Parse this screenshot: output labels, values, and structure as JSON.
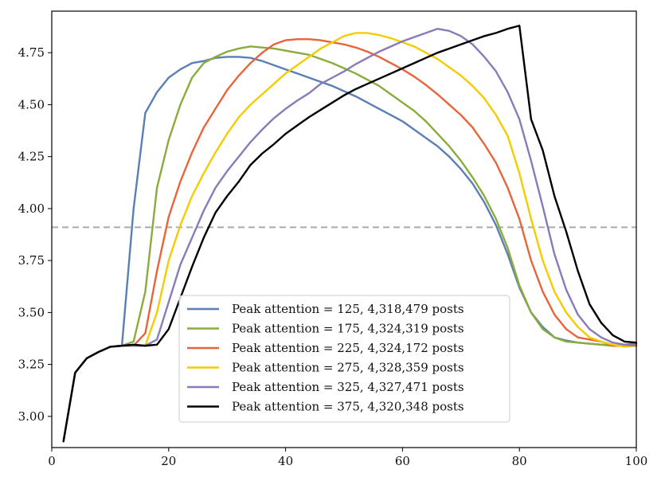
{
  "chart_data": {
    "type": "line",
    "title": "",
    "xlabel": "",
    "ylabel": "",
    "xlim": [
      0,
      100
    ],
    "ylim": [
      2.85,
      4.95
    ],
    "xticks": [
      0,
      20,
      40,
      60,
      80,
      100
    ],
    "yticks": [
      3.0,
      3.25,
      3.5,
      3.75,
      4.0,
      4.25,
      4.5,
      4.75
    ],
    "x": [
      2,
      4,
      6,
      8,
      10,
      12,
      14,
      16,
      18,
      20,
      22,
      24,
      26,
      28,
      30,
      32,
      34,
      36,
      38,
      40,
      42,
      44,
      46,
      48,
      50,
      52,
      54,
      56,
      58,
      60,
      62,
      64,
      66,
      68,
      70,
      72,
      74,
      76,
      78,
      80,
      82,
      84,
      86,
      88,
      90,
      92,
      94,
      96,
      98,
      100
    ],
    "grid": false,
    "legend_position": "bottom-center",
    "reference_line": {
      "y": 3.91,
      "style": "dashed",
      "color": "#aaaaaa"
    },
    "series": [
      {
        "name": "Peak attention = 125, 4,318,479 posts",
        "color": "#5b7fb5",
        "values": [
          2.88,
          3.21,
          3.28,
          3.31,
          3.335,
          3.34,
          4.0,
          4.46,
          4.56,
          4.63,
          4.67,
          4.7,
          4.71,
          4.725,
          4.73,
          4.73,
          4.725,
          4.71,
          4.69,
          4.67,
          4.65,
          4.63,
          4.61,
          4.59,
          4.565,
          4.54,
          4.51,
          4.48,
          4.45,
          4.42,
          4.38,
          4.34,
          4.3,
          4.25,
          4.19,
          4.12,
          4.03,
          3.92,
          3.78,
          3.62,
          3.5,
          3.43,
          3.38,
          3.365,
          3.355,
          3.35,
          3.345,
          3.34,
          3.345,
          3.35
        ]
      },
      {
        "name": "Peak attention = 175, 4,324,319 posts",
        "color": "#8aac3c",
        "values": [
          2.88,
          3.21,
          3.28,
          3.31,
          3.335,
          3.34,
          3.36,
          3.6,
          4.1,
          4.33,
          4.5,
          4.63,
          4.7,
          4.73,
          4.755,
          4.77,
          4.78,
          4.775,
          4.77,
          4.76,
          4.75,
          4.74,
          4.72,
          4.7,
          4.675,
          4.65,
          4.62,
          4.59,
          4.55,
          4.51,
          4.47,
          4.42,
          4.36,
          4.3,
          4.23,
          4.15,
          4.06,
          3.95,
          3.81,
          3.63,
          3.5,
          3.42,
          3.38,
          3.36,
          3.355,
          3.35,
          3.345,
          3.34,
          3.34,
          3.34
        ]
      },
      {
        "name": "Peak attention = 225, 4,324,172 posts",
        "color": "#e8643a",
        "values": [
          2.88,
          3.21,
          3.28,
          3.31,
          3.335,
          3.34,
          3.34,
          3.4,
          3.7,
          3.96,
          4.13,
          4.27,
          4.39,
          4.48,
          4.57,
          4.64,
          4.7,
          4.75,
          4.79,
          4.81,
          4.815,
          4.815,
          4.81,
          4.8,
          4.79,
          4.775,
          4.755,
          4.73,
          4.7,
          4.67,
          4.635,
          4.595,
          4.55,
          4.5,
          4.45,
          4.39,
          4.31,
          4.22,
          4.1,
          3.95,
          3.75,
          3.6,
          3.49,
          3.42,
          3.38,
          3.37,
          3.36,
          3.34,
          3.34,
          3.345
        ]
      },
      {
        "name": "Peak attention = 275, 4,328,359 posts",
        "color": "#f5cc00",
        "values": [
          2.88,
          3.21,
          3.28,
          3.31,
          3.335,
          3.34,
          3.34,
          3.34,
          3.5,
          3.75,
          3.92,
          4.06,
          4.17,
          4.27,
          4.36,
          4.44,
          4.5,
          4.55,
          4.6,
          4.65,
          4.69,
          4.73,
          4.77,
          4.8,
          4.83,
          4.845,
          4.845,
          4.835,
          4.82,
          4.8,
          4.78,
          4.75,
          4.72,
          4.68,
          4.64,
          4.59,
          4.53,
          4.45,
          4.35,
          4.17,
          3.95,
          3.75,
          3.6,
          3.5,
          3.43,
          3.38,
          3.36,
          3.345,
          3.335,
          3.34
        ]
      },
      {
        "name": "Peak attention = 325, 4,327,471 posts",
        "color": "#8a7ab9",
        "values": [
          2.88,
          3.21,
          3.28,
          3.31,
          3.335,
          3.34,
          3.34,
          3.34,
          3.37,
          3.55,
          3.73,
          3.86,
          3.99,
          4.1,
          4.18,
          4.25,
          4.32,
          4.38,
          4.435,
          4.48,
          4.52,
          4.555,
          4.6,
          4.63,
          4.66,
          4.695,
          4.725,
          4.755,
          4.78,
          4.805,
          4.825,
          4.845,
          4.865,
          4.855,
          4.83,
          4.79,
          4.73,
          4.66,
          4.56,
          4.43,
          4.23,
          4.01,
          3.78,
          3.61,
          3.49,
          3.42,
          3.38,
          3.355,
          3.345,
          3.34
        ]
      },
      {
        "name": "Peak attention = 375, 4,320,348 posts",
        "color": "#000000",
        "values": [
          2.88,
          3.21,
          3.28,
          3.31,
          3.335,
          3.34,
          3.345,
          3.34,
          3.345,
          3.42,
          3.57,
          3.72,
          3.86,
          3.98,
          4.06,
          4.13,
          4.21,
          4.265,
          4.31,
          4.36,
          4.4,
          4.44,
          4.475,
          4.51,
          4.545,
          4.575,
          4.6,
          4.625,
          4.65,
          4.675,
          4.7,
          4.725,
          4.75,
          4.77,
          4.79,
          4.81,
          4.83,
          4.845,
          4.865,
          4.88,
          4.43,
          4.28,
          4.06,
          3.89,
          3.7,
          3.54,
          3.45,
          3.39,
          3.36,
          3.355
        ]
      }
    ]
  }
}
